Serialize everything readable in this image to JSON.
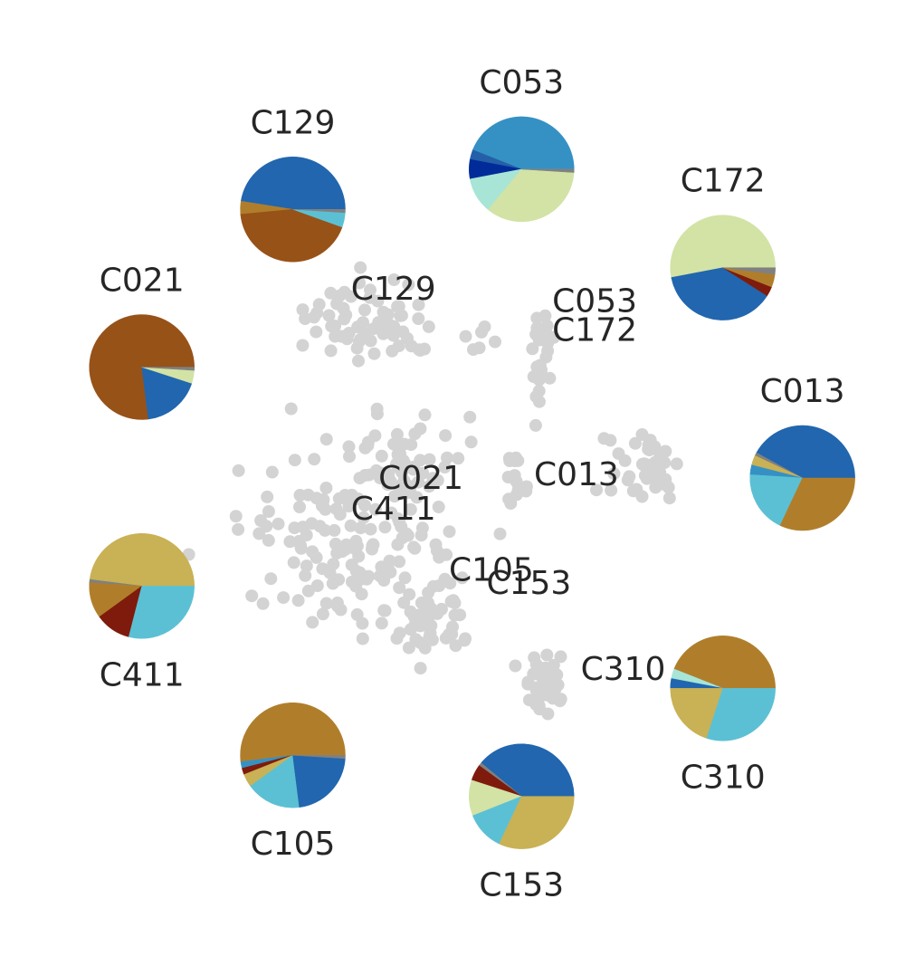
{
  "chart_data": {
    "type": "scatter",
    "description_of_marks": "gray cluster scatter with per-cluster composition pies arranged around it",
    "scatter": {
      "color": "#d3d3d3",
      "clusters": [
        {
          "id": "C129",
          "center": [
            0.405,
            0.335
          ],
          "spread": [
            0.06,
            0.035
          ],
          "n": 70
        },
        {
          "id": "C053",
          "center": [
            0.59,
            0.37
          ],
          "spread": [
            0.012,
            0.05
          ],
          "n": 24
        },
        {
          "id": "C172",
          "center": [
            0.535,
            0.35
          ],
          "spread": [
            0.025,
            0.012
          ],
          "n": 6
        },
        {
          "id": "C013",
          "center": [
            0.7,
            0.49
          ],
          "spread": [
            0.035,
            0.035
          ],
          "n": 40
        },
        {
          "id": "C013b",
          "center": [
            0.565,
            0.505
          ],
          "spread": [
            0.015,
            0.035
          ],
          "n": 16
        },
        {
          "id": "C021",
          "center": [
            0.44,
            0.49
          ],
          "spread": [
            0.045,
            0.045
          ],
          "n": 60
        },
        {
          "id": "C411",
          "center": [
            0.38,
            0.57
          ],
          "spread": [
            0.1,
            0.07
          ],
          "n": 140
        },
        {
          "id": "C105",
          "center": [
            0.47,
            0.64
          ],
          "spread": [
            0.04,
            0.03
          ],
          "n": 30
        },
        {
          "id": "C153",
          "center": [
            0.47,
            0.66
          ],
          "spread": [
            0.04,
            0.02
          ],
          "n": 12
        },
        {
          "id": "C310",
          "center": [
            0.595,
            0.71
          ],
          "spread": [
            0.02,
            0.025
          ],
          "n": 40
        }
      ]
    },
    "cluster_labels": [
      {
        "text": "C129",
        "x": 0.43,
        "y": 0.302
      },
      {
        "text": "C053",
        "x": 0.65,
        "y": 0.315
      },
      {
        "text": "C172",
        "x": 0.65,
        "y": 0.345
      },
      {
        "text": "C013",
        "x": 0.63,
        "y": 0.496
      },
      {
        "text": "C021",
        "x": 0.46,
        "y": 0.5
      },
      {
        "text": "C411",
        "x": 0.43,
        "y": 0.532
      },
      {
        "text": "C105",
        "x": 0.537,
        "y": 0.596
      },
      {
        "text": "C153",
        "x": 0.578,
        "y": 0.61
      },
      {
        "text": "C310",
        "x": 0.681,
        "y": 0.7
      }
    ],
    "pies": [
      {
        "id": "C053",
        "cx": 0.57,
        "cy": 0.177,
        "label_pos": "above",
        "slices": [
          {
            "color": "#3591c4",
            "value": 44
          },
          {
            "color": "#245fa8",
            "value": 3
          },
          {
            "color": "#002b99",
            "value": 6
          },
          {
            "color": "#a8e5d6",
            "value": 11
          },
          {
            "color": "#d2e3a5",
            "value": 35
          },
          {
            "color": "#808080",
            "value": 1
          }
        ]
      },
      {
        "id": "C129",
        "cx": 0.32,
        "cy": 0.219,
        "label_pos": "above",
        "slices": [
          {
            "color": "#2166ae",
            "value": 47.5
          },
          {
            "color": "#b07e2b",
            "value": 4
          },
          {
            "color": "#975218",
            "value": 43
          },
          {
            "color": "#5cc0d4",
            "value": 4.5
          },
          {
            "color": "#808080",
            "value": 1
          }
        ]
      },
      {
        "id": "C172",
        "cx": 0.79,
        "cy": 0.28,
        "label_pos": "above",
        "slices": [
          {
            "color": "#d2e3a5",
            "value": 53
          },
          {
            "color": "#2166ae",
            "value": 38
          },
          {
            "color": "#7f1b0c",
            "value": 3
          },
          {
            "color": "#b07e2b",
            "value": 4
          },
          {
            "color": "#808080",
            "value": 2
          }
        ]
      },
      {
        "id": "C021",
        "cx": 0.155,
        "cy": 0.384,
        "label_pos": "above",
        "slices": [
          {
            "color": "#975218",
            "value": 77
          },
          {
            "color": "#2166ae",
            "value": 18
          },
          {
            "color": "#d2e3a5",
            "value": 4
          },
          {
            "color": "#808080",
            "value": 1
          }
        ]
      },
      {
        "id": "C013",
        "cx": 0.877,
        "cy": 0.5,
        "label_pos": "above",
        "slices": [
          {
            "color": "#2166ae",
            "value": 42
          },
          {
            "color": "#808080",
            "value": 1
          },
          {
            "color": "#c9b155",
            "value": 3
          },
          {
            "color": "#3591c4",
            "value": 3
          },
          {
            "color": "#5cc0d4",
            "value": 19
          },
          {
            "color": "#b07e2b",
            "value": 32
          }
        ]
      },
      {
        "id": "C411",
        "cx": 0.155,
        "cy": 0.613,
        "label_pos": "below",
        "slices": [
          {
            "color": "#c9b155",
            "value": 48
          },
          {
            "color": "#808080",
            "value": 1
          },
          {
            "color": "#b07e2b",
            "value": 11
          },
          {
            "color": "#7f1b0c",
            "value": 11
          },
          {
            "color": "#5cc0d4",
            "value": 29
          }
        ]
      },
      {
        "id": "C310",
        "cx": 0.79,
        "cy": 0.72,
        "label_pos": "below",
        "slices": [
          {
            "color": "#b07e2b",
            "value": 44
          },
          {
            "color": "#a8e5d6",
            "value": 3
          },
          {
            "color": "#2166ae",
            "value": 3
          },
          {
            "color": "#c9b155",
            "value": 20
          },
          {
            "color": "#5cc0d4",
            "value": 30
          }
        ]
      },
      {
        "id": "C105",
        "cx": 0.32,
        "cy": 0.79,
        "label_pos": "below",
        "slices": [
          {
            "color": "#b07e2b",
            "value": 52
          },
          {
            "color": "#3591c4",
            "value": 2
          },
          {
            "color": "#7f1b0c",
            "value": 2
          },
          {
            "color": "#c9b155",
            "value": 4
          },
          {
            "color": "#5cc0d4",
            "value": 17
          },
          {
            "color": "#2166ae",
            "value": 22
          },
          {
            "color": "#808080",
            "value": 1
          }
        ]
      },
      {
        "id": "C153",
        "cx": 0.57,
        "cy": 0.833,
        "label_pos": "below",
        "slices": [
          {
            "color": "#2166ae",
            "value": 39
          },
          {
            "color": "#808080",
            "value": 1
          },
          {
            "color": "#7f1b0c",
            "value": 5
          },
          {
            "color": "#d2e3a5",
            "value": 11
          },
          {
            "color": "#5cc0d4",
            "value": 12
          },
          {
            "color": "#c9b155",
            "value": 32
          }
        ]
      }
    ]
  }
}
